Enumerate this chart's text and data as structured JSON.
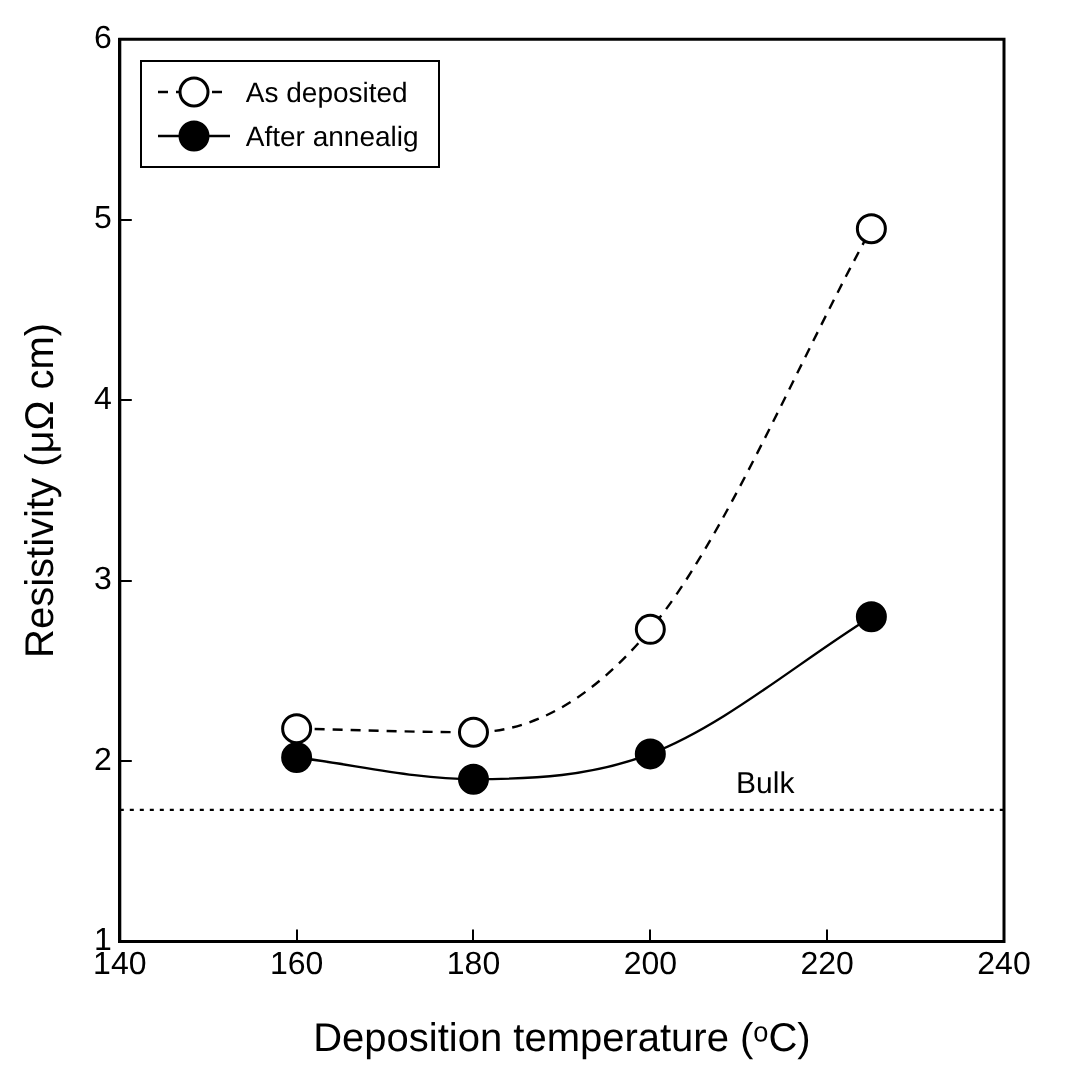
{
  "chart_data": {
    "type": "line",
    "xlabel": "Deposition temperature (ᵒC)",
    "ylabel": "Resistivity (μΩ cm)",
    "x": [
      160,
      180,
      200,
      225
    ],
    "series": [
      {
        "name": "As deposited",
        "color": "#ffffff",
        "values": [
          2.18,
          2.16,
          2.73,
          4.95
        ],
        "line_style": "dashed"
      },
      {
        "name": "After annealig",
        "color": "#000000",
        "values": [
          2.02,
          1.9,
          2.04,
          2.8
        ],
        "line_style": "solid"
      }
    ],
    "xlim": [
      140,
      240
    ],
    "xticks": [
      140,
      160,
      180,
      200,
      220,
      240
    ],
    "ylim": [
      1,
      6
    ],
    "yticks": [
      1,
      2,
      3,
      4,
      5,
      6
    ],
    "marker": "circle",
    "legend": "top left",
    "ref_lines": [
      {
        "axis": "y",
        "value": 1.73,
        "label": "Bulk",
        "line_style": "dotted"
      }
    ]
  }
}
